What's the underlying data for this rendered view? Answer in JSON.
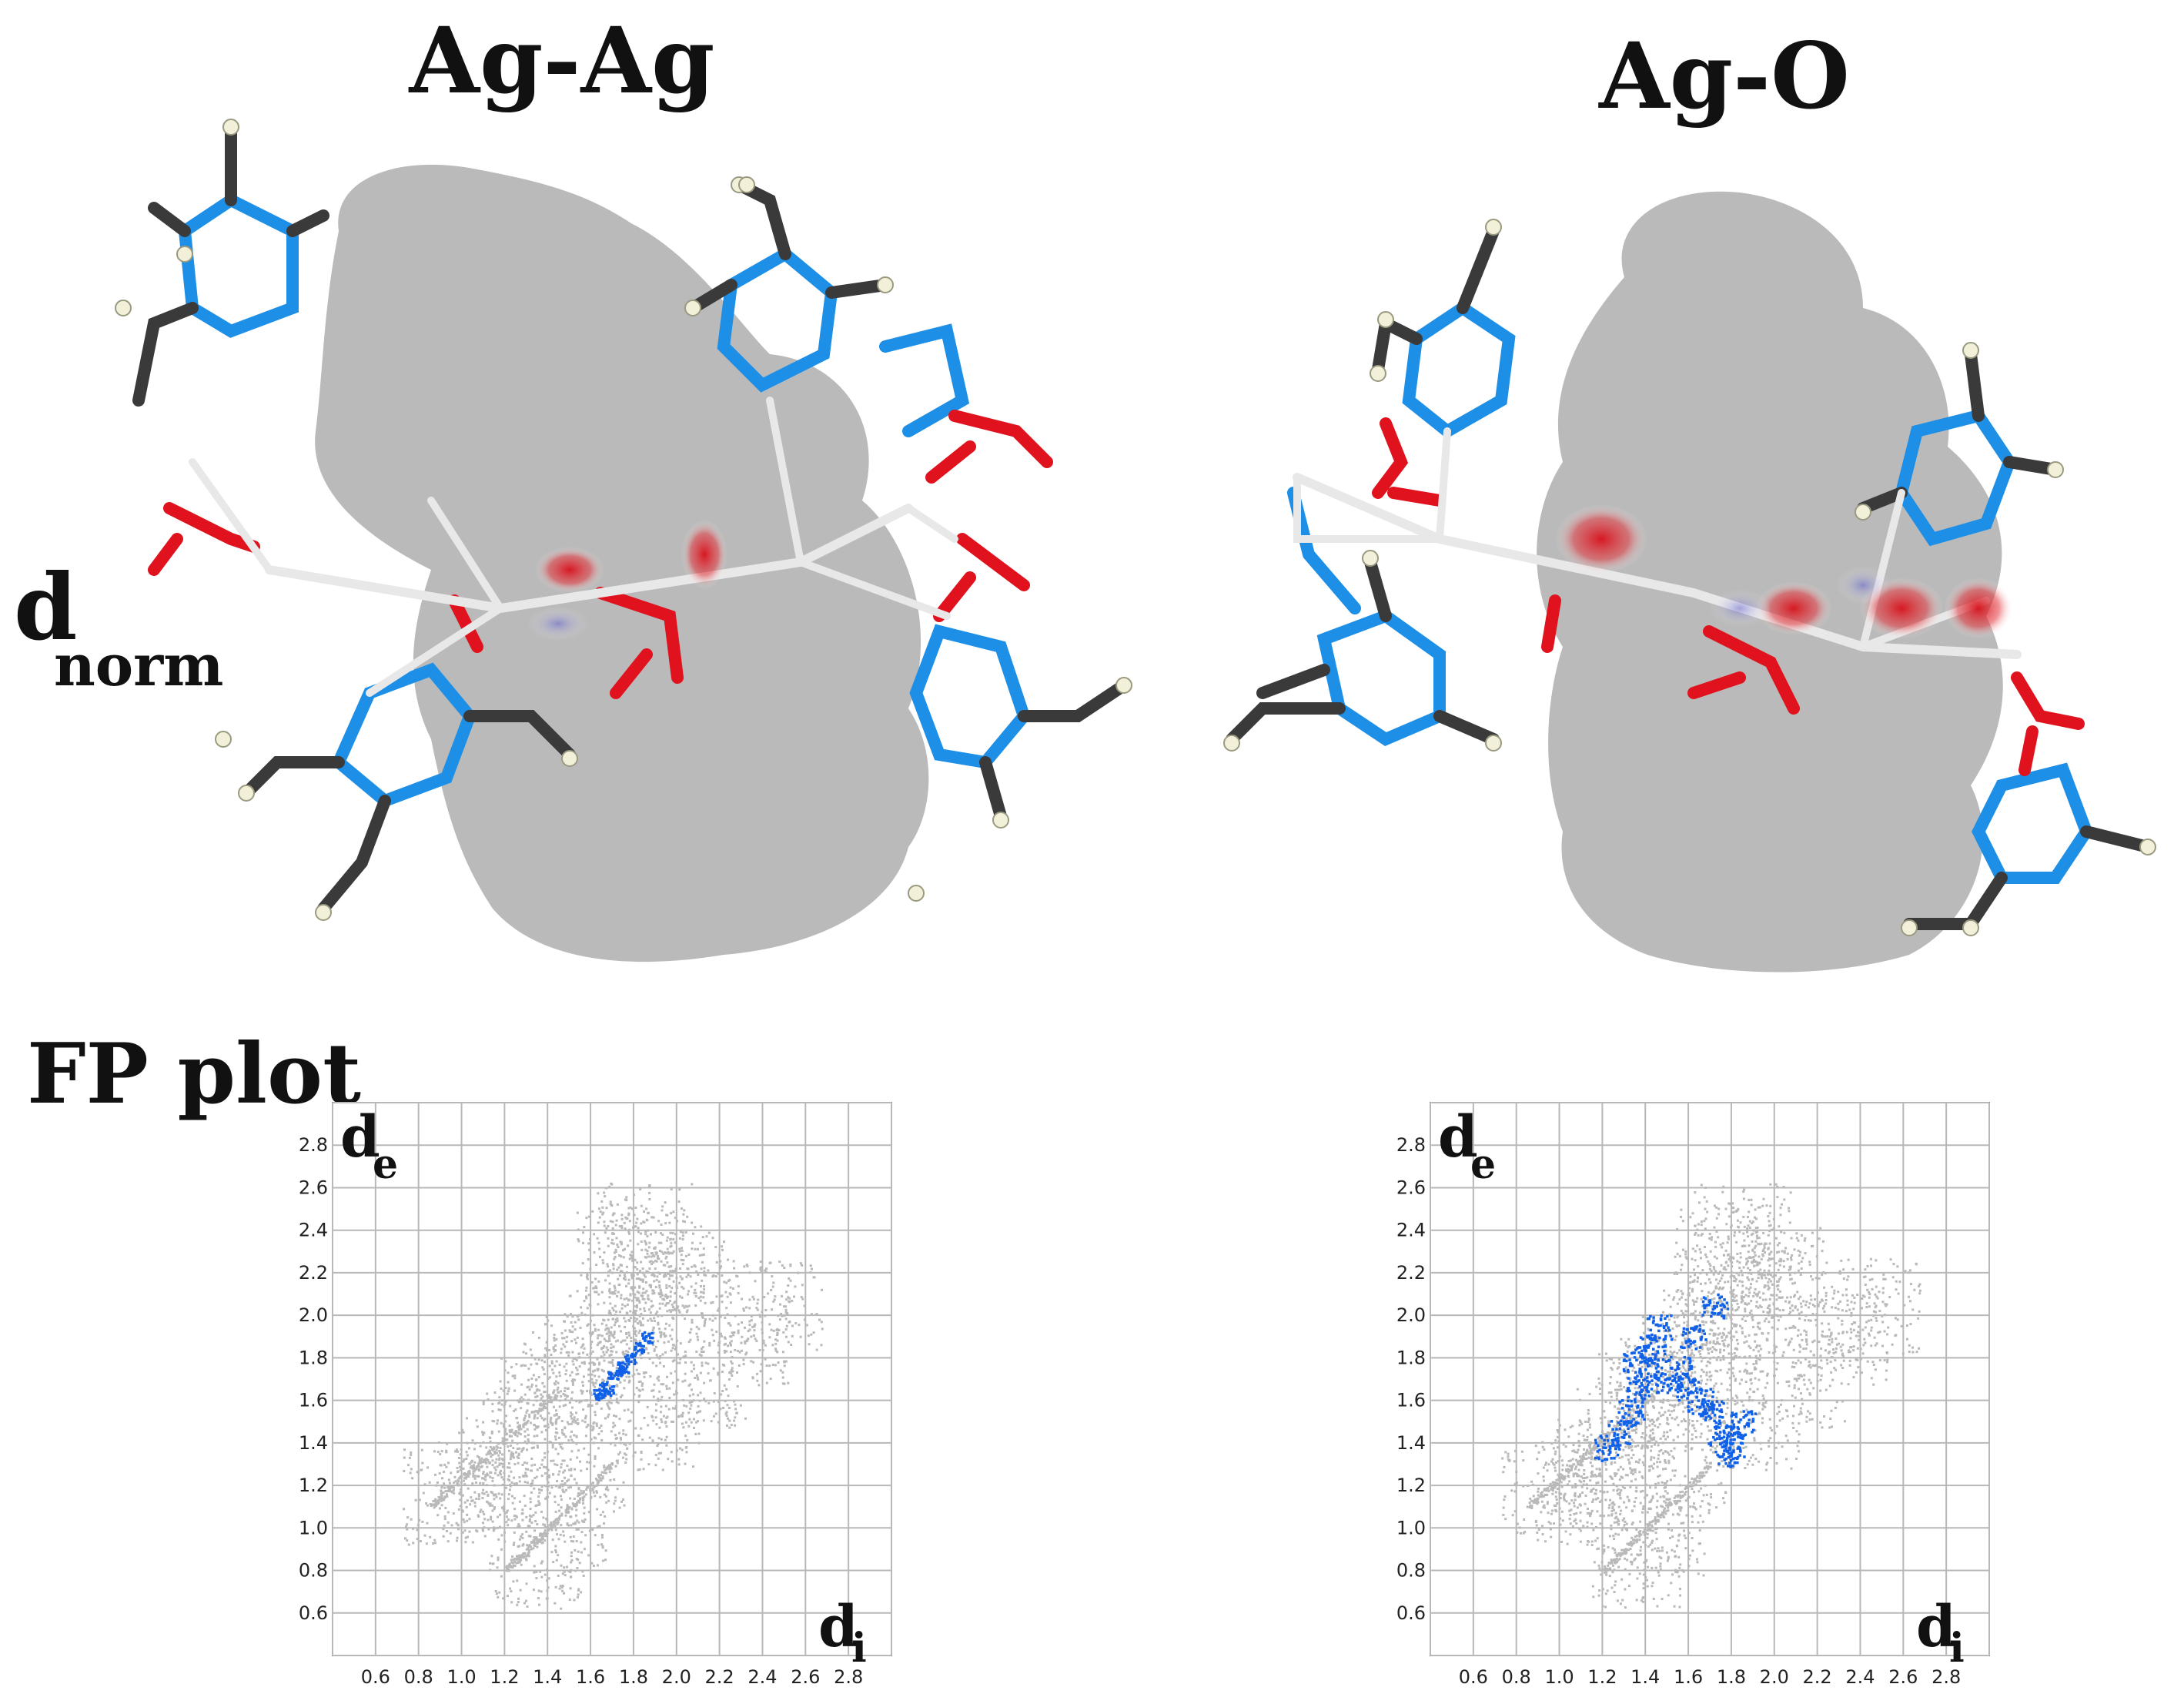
{
  "headings": {
    "left_title": "Ag-Ag",
    "right_title": "Ag-O",
    "dnorm_main": "d",
    "dnorm_sub": "norm",
    "fp_label": "FP plot"
  },
  "axis_symbols": {
    "de_main": "d",
    "de_sub": "e",
    "di_main": "d",
    "di_sub": "i"
  },
  "colors": {
    "carbon": "#3a3a3a",
    "nitrogen": "#1e8fe6",
    "oxygen": "#e0121e",
    "hydrogen": "#f2f0d8",
    "silver": "#e8e8e8",
    "surface": "#9c9c9c",
    "fp_background_points": "#b9b9b9",
    "fp_highlight_points": "#1060e8",
    "dnorm_red_spot": "#d8101a"
  },
  "chart_data": [
    {
      "type": "scatter",
      "title": "Ag-Ag",
      "xlabel": "di",
      "ylabel": "de",
      "xlim": [
        0.4,
        3.0
      ],
      "ylim": [
        0.4,
        3.0
      ],
      "x_ticks": [
        "0.6",
        "0.8",
        "1.0",
        "1.2",
        "1.4",
        "1.6",
        "1.8",
        "2.0",
        "2.2",
        "2.4",
        "2.6",
        "2.8"
      ],
      "y_ticks": [
        "0.6",
        "0.8",
        "1.0",
        "1.2",
        "1.4",
        "1.6",
        "1.8",
        "2.0",
        "2.2",
        "2.4",
        "2.6",
        "2.8"
      ],
      "grid": true,
      "series": [
        {
          "role": "all contacts (grey)",
          "color": "#b9b9b9",
          "x": [
            1.6,
            1.7,
            1.8,
            1.9,
            2.0,
            1.5,
            1.4,
            1.3,
            1.2,
            1.1,
            0.95,
            1.45,
            1.35,
            1.9,
            2.1,
            2.3,
            2.45,
            1.75,
            1.85,
            1.55
          ],
          "y": [
            1.8,
            1.9,
            2.0,
            2.1,
            2.2,
            1.7,
            1.6,
            1.45,
            1.3,
            1.2,
            1.15,
            1.0,
            0.85,
            1.5,
            1.7,
            1.9,
            2.05,
            2.3,
            2.4,
            1.3
          ]
        },
        {
          "role": "Ag-Ag contacts (blue)",
          "color": "#1060e8",
          "x": [
            1.63,
            1.66,
            1.7,
            1.74,
            1.78,
            1.82,
            1.86,
            1.68,
            1.75
          ],
          "y": [
            1.63,
            1.67,
            1.72,
            1.76,
            1.8,
            1.85,
            1.9,
            1.65,
            1.74
          ]
        }
      ]
    },
    {
      "type": "scatter",
      "title": "Ag-O",
      "xlabel": "di",
      "ylabel": "de",
      "xlim": [
        0.4,
        3.0
      ],
      "ylim": [
        0.4,
        3.0
      ],
      "x_ticks": [
        "0.6",
        "0.8",
        "1.0",
        "1.2",
        "1.4",
        "1.6",
        "1.8",
        "2.0",
        "2.2",
        "2.4",
        "2.6",
        "2.8"
      ],
      "y_ticks": [
        "0.6",
        "0.8",
        "1.0",
        "1.2",
        "1.4",
        "1.6",
        "1.8",
        "2.0",
        "2.2",
        "2.4",
        "2.6",
        "2.8"
      ],
      "grid": true,
      "series": [
        {
          "role": "all contacts (grey)",
          "color": "#b9b9b9",
          "x": [
            1.6,
            1.7,
            1.8,
            1.9,
            2.0,
            1.5,
            1.4,
            1.3,
            1.2,
            1.1,
            0.95,
            1.45,
            1.35,
            1.9,
            2.1,
            2.3,
            2.45,
            1.75,
            1.85,
            1.55
          ],
          "y": [
            1.8,
            1.9,
            2.0,
            2.1,
            2.2,
            1.7,
            1.6,
            1.45,
            1.3,
            1.2,
            1.15,
            1.0,
            0.85,
            1.5,
            1.7,
            1.9,
            2.05,
            2.3,
            2.4,
            1.3
          ]
        },
        {
          "role": "Ag-O contacts (blue)",
          "color": "#1060e8",
          "x": [
            1.22,
            1.28,
            1.33,
            1.37,
            1.4,
            1.43,
            1.46,
            1.35,
            1.5,
            1.55,
            1.6,
            1.65,
            1.7,
            1.75,
            1.8,
            1.85,
            1.72,
            1.78,
            1.62
          ],
          "y": [
            1.38,
            1.45,
            1.55,
            1.65,
            1.75,
            1.85,
            1.95,
            1.8,
            1.7,
            1.75,
            1.65,
            1.6,
            1.55,
            1.45,
            1.4,
            1.5,
            2.05,
            1.35,
            1.9
          ]
        }
      ]
    }
  ]
}
